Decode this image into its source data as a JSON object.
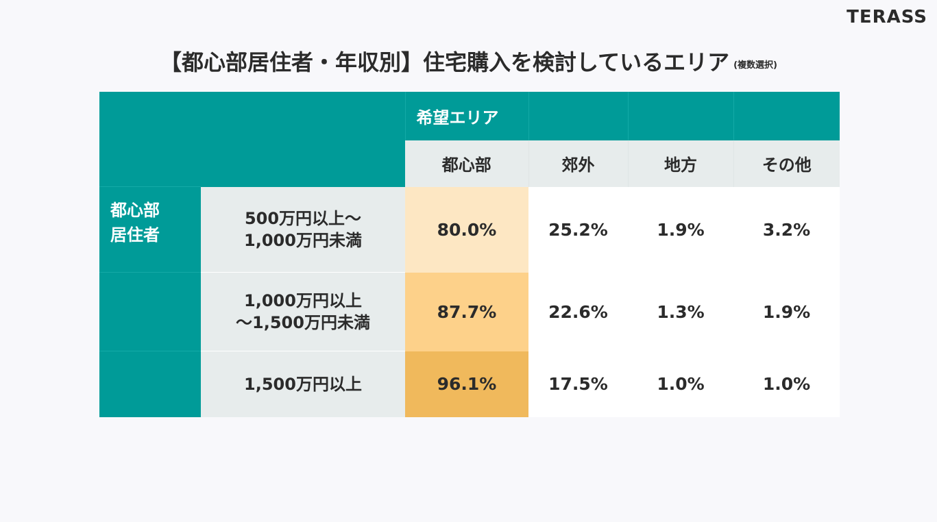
{
  "brand": {
    "logo_text": "TERASS"
  },
  "title": {
    "main": "【都心部居住者・年収別】住宅購入を検討しているエリア",
    "note": "(複数選択)"
  },
  "table": {
    "group_header": "希望エリア",
    "row_group_label": "都心部\n居住者",
    "columns": [
      "都心部",
      "郊外",
      "地方",
      "その他"
    ],
    "rows": [
      {
        "income": "500万円以上～\n1,000万円未満",
        "values": [
          "80.0%",
          "25.2%",
          "1.9%",
          "3.2%"
        ]
      },
      {
        "income": "1,000万円以上\n～1,500万円未満",
        "values": [
          "87.7%",
          "22.6%",
          "1.3%",
          "1.9%"
        ]
      },
      {
        "income": "1,500万円以上",
        "values": [
          "96.1%",
          "17.5%",
          "1.0%",
          "1.0%"
        ]
      }
    ],
    "highlight_colors": [
      "#fde7c3",
      "#fdd18a",
      "#f0b95c"
    ],
    "colors": {
      "teal": "#009b98",
      "light_cell": "#e7ecec",
      "white_cell": "#ffffff"
    }
  }
}
